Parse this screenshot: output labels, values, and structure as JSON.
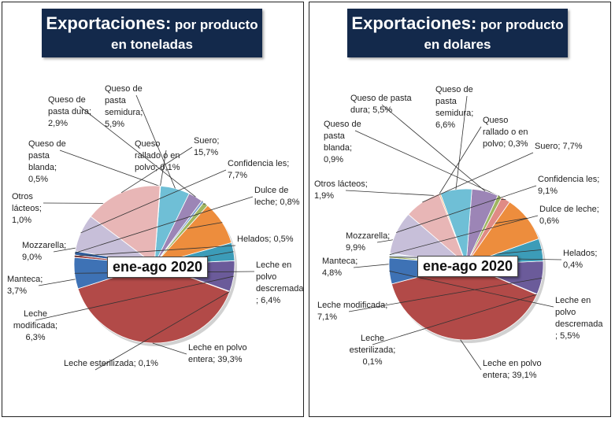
{
  "chart_data": [
    {
      "type": "pie",
      "title": "Exportaciones:",
      "title_suffix": "por producto",
      "subtitle": "en toneladas",
      "period": "ene-ago 2020",
      "slices": [
        {
          "label": [
            "Leche en polvo",
            "entera; 39,3%"
          ],
          "value": 39.3,
          "color": "#b24a48"
        },
        {
          "label": [
            "Leche esterilizada; 0,1%"
          ],
          "value": 0.1,
          "color": "#dadada"
        },
        {
          "label": [
            "Leche",
            "modificada;",
            "6,3%"
          ],
          "value": 6.3,
          "color": "#6b5b9a"
        },
        {
          "label": [
            "Manteca;",
            "3,7%"
          ],
          "value": 3.7,
          "color": "#3c9cb8"
        },
        {
          "label": [
            "Mozzarella;",
            "9,0%"
          ],
          "value": 9.0,
          "color": "#ed8d3d"
        },
        {
          "label": [
            "Otros",
            "lácteos;",
            "1,0%"
          ],
          "value": 1.0,
          "color": "#9fb661"
        },
        {
          "label": [
            "Queso de",
            "pasta",
            "blanda;",
            "0,5%"
          ],
          "value": 0.5,
          "color": "#7e9fd0"
        },
        {
          "label": [
            "Queso de",
            "pasta dura;",
            "2,9%"
          ],
          "value": 2.9,
          "color": "#9c85b6"
        },
        {
          "label": [
            "Queso de",
            "pasta",
            "semidura;",
            "5,9%"
          ],
          "value": 5.9,
          "color": "#6fbfd6"
        },
        {
          "label": [
            "Queso",
            "rallado o en",
            "polvo; 0,1%"
          ],
          "value": 0.1,
          "color": "#f3b27c"
        },
        {
          "label": [
            "Suero;",
            "15,7%"
          ],
          "value": 15.7,
          "color": "#e8b6b6"
        },
        {
          "label": [
            "Confidencia les;",
            "7,7%"
          ],
          "value": 7.7,
          "color": "#c7bfd9"
        },
        {
          "label": [
            "Dulce de",
            "leche; 0,8%"
          ],
          "value": 0.8,
          "color": "#2f5c9c"
        },
        {
          "label": [
            "Helados; 0,5%"
          ],
          "value": 0.5,
          "color": "#a14444"
        },
        {
          "label": [
            "Leche en",
            "polvo",
            "descremada",
            "; 6,4%"
          ],
          "value": 6.4,
          "color": "#3e72b5"
        }
      ]
    },
    {
      "type": "pie",
      "title": "Exportaciones:",
      "title_suffix": "por producto",
      "subtitle": "en dolares",
      "period": "ene-ago 2020",
      "slices": [
        {
          "label": [
            "Leche en polvo",
            "entera; 39,1%"
          ],
          "value": 39.1,
          "color": "#b24a48"
        },
        {
          "label": [
            "Leche",
            "esterilizada;",
            "0,1%"
          ],
          "value": 0.1,
          "color": "#dadada"
        },
        {
          "label": [
            "Leche modificada;",
            "7,1%"
          ],
          "value": 7.1,
          "color": "#6b5b9a"
        },
        {
          "label": [
            "Manteca;",
            "4,8%"
          ],
          "value": 4.8,
          "color": "#3c9cb8"
        },
        {
          "label": [
            "Mozzarella;",
            "9,9%"
          ],
          "value": 9.9,
          "color": "#ed8d3d"
        },
        {
          "label": [
            "Otros lácteos;",
            "1,9%"
          ],
          "value": 1.9,
          "color": "#e08b85"
        },
        {
          "label": [
            "Queso de",
            "pasta",
            "blanda;",
            "0,9%"
          ],
          "value": 0.9,
          "color": "#9fb661"
        },
        {
          "label": [
            "Queso de pasta",
            "dura; 5,5%"
          ],
          "value": 5.5,
          "color": "#9c85b6"
        },
        {
          "label": [
            "Queso de",
            "pasta",
            "semidura;",
            "6,6%"
          ],
          "value": 6.6,
          "color": "#6fbfd6"
        },
        {
          "label": [
            "Queso",
            "rallado o en",
            "polvo; 0,3%"
          ],
          "value": 0.3,
          "color": "#f3b27c"
        },
        {
          "label": [
            "Suero; 7,7%"
          ],
          "value": 7.7,
          "color": "#e8b6b6"
        },
        {
          "label": [
            "Confidencia les;",
            "9,1%"
          ],
          "value": 9.1,
          "color": "#c7bfd9"
        },
        {
          "label": [
            "Dulce de leche;",
            "0,6%"
          ],
          "value": 0.6,
          "color": "#dbe6f4"
        },
        {
          "label": [
            "Helados;",
            "0,4%"
          ],
          "value": 0.4,
          "color": "#9fb661"
        },
        {
          "label": [
            "Leche en",
            "polvo",
            "descremada",
            "; 5,5%"
          ],
          "value": 5.5,
          "color": "#3e72b5"
        }
      ]
    }
  ]
}
